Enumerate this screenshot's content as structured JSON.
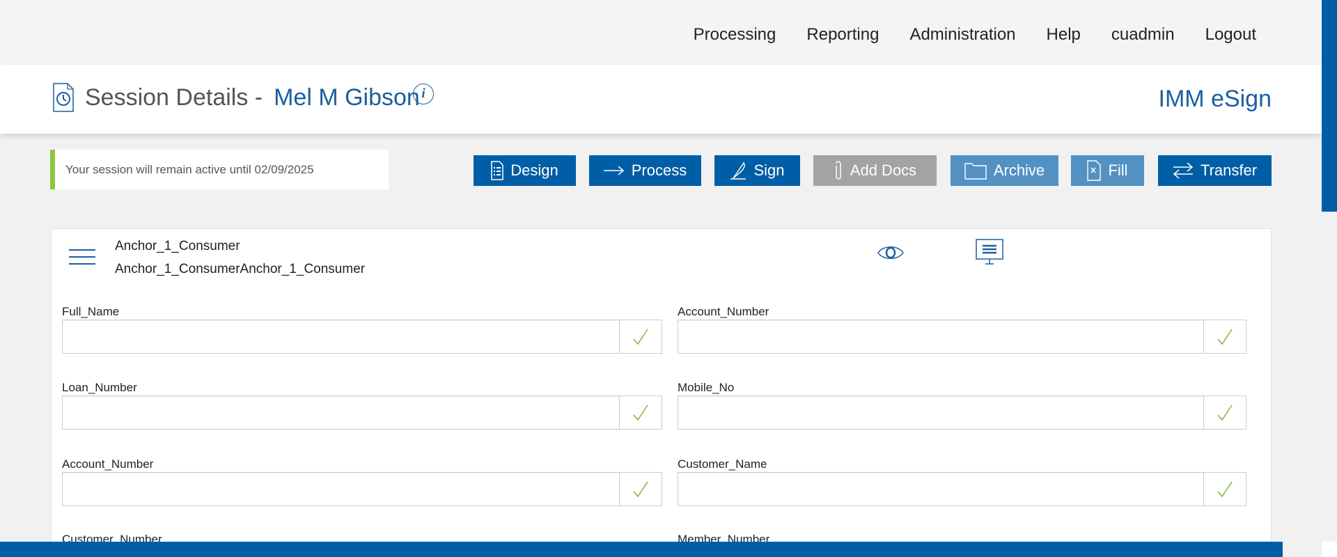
{
  "nav": {
    "items": [
      "Processing",
      "Reporting",
      "Administration",
      "Help",
      "cuadmin",
      "Logout"
    ]
  },
  "header": {
    "title": "Session Details -",
    "user": "Mel M Gibson",
    "info": "i",
    "brand": "IMM eSign"
  },
  "session": {
    "message": "Your session will remain active until 02/09/2025"
  },
  "toolbar": {
    "design": "Design",
    "process": "Process",
    "sign": "Sign",
    "add_docs": "Add Docs",
    "archive": "Archive",
    "fill": "Fill",
    "transfer": "Transfer"
  },
  "document": {
    "name": "Anchor_1_Consumer",
    "subtitle": "Anchor_1_ConsumerAnchor_1_Consumer"
  },
  "fields": [
    {
      "label": "Full_Name",
      "value": ""
    },
    {
      "label": "Account_Number",
      "value": ""
    },
    {
      "label": "Loan_Number",
      "value": ""
    },
    {
      "label": "Mobile_No",
      "value": ""
    },
    {
      "label": "Account_Number",
      "value": ""
    },
    {
      "label": "Customer_Name",
      "value": ""
    },
    {
      "label": "Customer_Number",
      "value": ""
    },
    {
      "label": "Member_Number",
      "value": ""
    }
  ],
  "colors": {
    "primary": "#005ea6",
    "accent_green": "#8dc63f",
    "disabled": "#a4a3a1",
    "light_blue": "#5391c2",
    "check": "#7cb342"
  }
}
